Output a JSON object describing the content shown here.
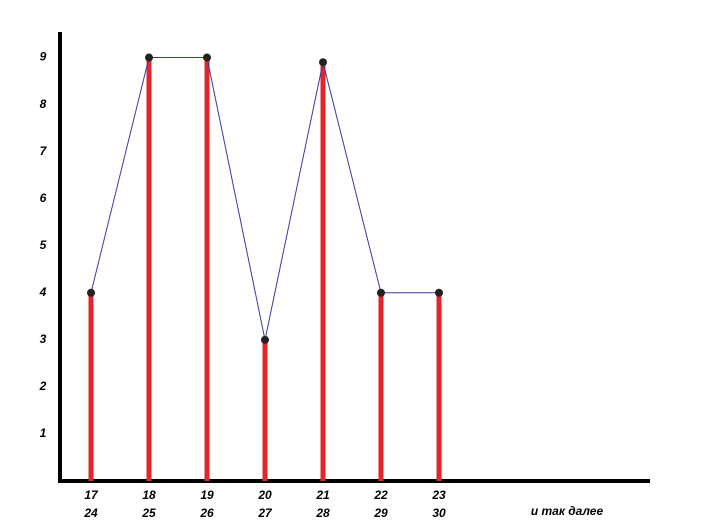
{
  "chart_data": {
    "type": "line-bar",
    "categories": [
      [
        "17",
        "24"
      ],
      [
        "18",
        "25"
      ],
      [
        "19",
        "26"
      ],
      [
        "20",
        "27"
      ],
      [
        "21",
        "28"
      ],
      [
        "22",
        "29"
      ],
      [
        "23",
        "30"
      ]
    ],
    "values": [
      4,
      9,
      9,
      3,
      8.9,
      4,
      4
    ],
    "bar_color": "#e3262b",
    "line_color": "#3a3aa0",
    "ylim": [
      0,
      9.5
    ],
    "yticks": [
      1,
      2,
      3,
      4,
      5,
      6,
      7,
      8,
      9
    ],
    "annotation": "и так далее"
  }
}
